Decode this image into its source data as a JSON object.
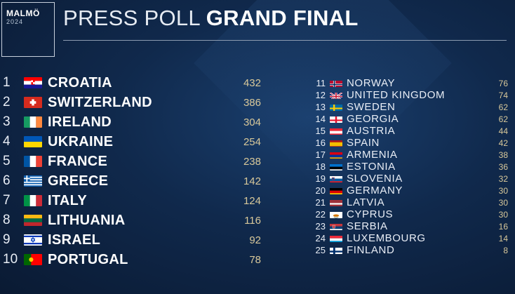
{
  "logo": {
    "city": "MALMÖ",
    "year": "2024"
  },
  "header": {
    "title_light": "PRESS POLL",
    "title_bold": "GRAND FINAL"
  },
  "results": [
    {
      "rank": "1",
      "country": "CROATIA",
      "score": "432",
      "flag": "croatia-flag-icon"
    },
    {
      "rank": "2",
      "country": "SWITZERLAND",
      "score": "386",
      "flag": "switzerland-flag-icon"
    },
    {
      "rank": "3",
      "country": "IRELAND",
      "score": "304",
      "flag": "ireland-flag-icon"
    },
    {
      "rank": "4",
      "country": "UKRAINE",
      "score": "254",
      "flag": "ukraine-flag-icon"
    },
    {
      "rank": "5",
      "country": "FRANCE",
      "score": "238",
      "flag": "france-flag-icon"
    },
    {
      "rank": "6",
      "country": "GREECE",
      "score": "142",
      "flag": "greece-flag-icon"
    },
    {
      "rank": "7",
      "country": "ITALY",
      "score": "124",
      "flag": "italy-flag-icon"
    },
    {
      "rank": "8",
      "country": "LITHUANIA",
      "score": "116",
      "flag": "lithuania-flag-icon"
    },
    {
      "rank": "9",
      "country": "ISRAEL",
      "score": "92",
      "flag": "israel-flag-icon"
    },
    {
      "rank": "10",
      "country": "PORTUGAL",
      "score": "78",
      "flag": "portugal-flag-icon"
    },
    {
      "rank": "11",
      "country": "NORWAY",
      "score": "76",
      "flag": "norway-flag-icon"
    },
    {
      "rank": "12",
      "country": "UNITED KINGDOM",
      "score": "74",
      "flag": "united-kingdom-flag-icon"
    },
    {
      "rank": "13",
      "country": "SWEDEN",
      "score": "62",
      "flag": "sweden-flag-icon"
    },
    {
      "rank": "14",
      "country": "GEORGIA",
      "score": "62",
      "flag": "georgia-flag-icon"
    },
    {
      "rank": "15",
      "country": "AUSTRIA",
      "score": "44",
      "flag": "austria-flag-icon"
    },
    {
      "rank": "16",
      "country": "SPAIN",
      "score": "42",
      "flag": "spain-flag-icon"
    },
    {
      "rank": "17",
      "country": "ARMENIA",
      "score": "38",
      "flag": "armenia-flag-icon"
    },
    {
      "rank": "18",
      "country": "ESTONIA",
      "score": "36",
      "flag": "estonia-flag-icon"
    },
    {
      "rank": "19",
      "country": "SLOVENIA",
      "score": "32",
      "flag": "slovenia-flag-icon"
    },
    {
      "rank": "20",
      "country": "GERMANY",
      "score": "30",
      "flag": "germany-flag-icon"
    },
    {
      "rank": "21",
      "country": "LATVIA",
      "score": "30",
      "flag": "latvia-flag-icon"
    },
    {
      "rank": "22",
      "country": "CYPRUS",
      "score": "30",
      "flag": "cyprus-flag-icon"
    },
    {
      "rank": "23",
      "country": "SERBIA",
      "score": "16",
      "flag": "serbia-flag-icon"
    },
    {
      "rank": "24",
      "country": "LUXEMBOURG",
      "score": "14",
      "flag": "luxembourg-flag-icon"
    },
    {
      "rank": "25",
      "country": "FINLAND",
      "score": "8",
      "flag": "finland-flag-icon"
    }
  ]
}
